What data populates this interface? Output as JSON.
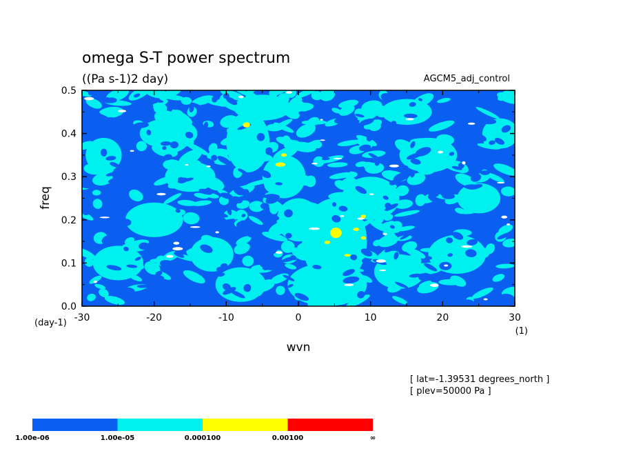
{
  "chart_data": {
    "type": "heatmap",
    "title": "omega S-T power spectrum",
    "subtitle": "((Pa s-1)2 day)",
    "dataset_label": "AGCM5_adj_control",
    "xlabel": "wvn",
    "ylabel": "freq",
    "x_unit": "(1)",
    "y_unit": "(day-1)",
    "xlim": [
      -30,
      30
    ],
    "ylim": [
      0,
      0.5
    ],
    "x_ticks": [
      "-30",
      "-20",
      "-10",
      "0",
      "10",
      "20",
      "30"
    ],
    "x_tick_values": [
      -30,
      -20,
      -10,
      0,
      10,
      20,
      30
    ],
    "y_ticks": [
      "0.0",
      "0.1",
      "0.2",
      "0.3",
      "0.4",
      "0.5"
    ],
    "y_tick_values": [
      0,
      0.1,
      0.2,
      0.3,
      0.4,
      0.5
    ],
    "info_lines": [
      "[ lat=-1.39531 degrees_north ]",
      "[ plev=50000 Pa ]"
    ],
    "levels": [
      {
        "label": "1.00e-06",
        "color": "#0a5ff0"
      },
      {
        "label": "1.00e-05",
        "color": "#00f0f0"
      },
      {
        "label": "0.000100",
        "color": "#ffff00"
      },
      {
        "label": "0.00100",
        "color": "#ff0000"
      }
    ],
    "colorbar_end_label": "∞",
    "background_level_color": "#0a5ff0",
    "cyan_regions": [
      {
        "x": 5,
        "y": 0.15,
        "rx": 4.5,
        "ry": 0.1
      },
      {
        "x": 4,
        "y": 0.05,
        "rx": 5.5,
        "ry": 0.05
      },
      {
        "x": -7,
        "y": 0.38,
        "rx": 3,
        "ry": 0.07
      },
      {
        "x": -2,
        "y": 0.3,
        "rx": 3,
        "ry": 0.05
      },
      {
        "x": 10,
        "y": 0.25,
        "rx": 4,
        "ry": 0.05
      },
      {
        "x": -20,
        "y": 0.2,
        "rx": 4,
        "ry": 0.04
      },
      {
        "x": -25,
        "y": 0.1,
        "rx": 3.5,
        "ry": 0.04
      },
      {
        "x": -18,
        "y": 0.4,
        "rx": 4,
        "ry": 0.035
      },
      {
        "x": -12,
        "y": 0.12,
        "rx": 3,
        "ry": 0.04
      },
      {
        "x": -15,
        "y": 0.3,
        "rx": 3.5,
        "ry": 0.035
      },
      {
        "x": 18,
        "y": 0.35,
        "rx": 4,
        "ry": 0.04
      },
      {
        "x": 22,
        "y": 0.12,
        "rx": 4,
        "ry": 0.045
      },
      {
        "x": 25,
        "y": 0.25,
        "rx": 3,
        "ry": 0.035
      },
      {
        "x": 15,
        "y": 0.45,
        "rx": 3.5,
        "ry": 0.03
      },
      {
        "x": -5,
        "y": 0.46,
        "rx": 4,
        "ry": 0.03
      },
      {
        "x": 0,
        "y": 0.2,
        "rx": 3,
        "ry": 0.05
      },
      {
        "x": 14,
        "y": 0.08,
        "rx": 3.5,
        "ry": 0.04
      },
      {
        "x": -8,
        "y": 0.05,
        "rx": 3.5,
        "ry": 0.04
      },
      {
        "x": 28,
        "y": 0.4,
        "rx": 2.5,
        "ry": 0.035
      },
      {
        "x": -27,
        "y": 0.35,
        "rx": 2.5,
        "ry": 0.04
      }
    ],
    "yellow_spots": [
      {
        "x": -7.2,
        "y": 0.42,
        "rx": 0.5,
        "ry": 0.006
      },
      {
        "x": -2.5,
        "y": 0.328,
        "rx": 0.7,
        "ry": 0.005
      },
      {
        "x": -2,
        "y": 0.35,
        "rx": 0.4,
        "ry": 0.004
      },
      {
        "x": 5.2,
        "y": 0.17,
        "rx": 0.8,
        "ry": 0.012
      },
      {
        "x": 4,
        "y": 0.148,
        "rx": 0.4,
        "ry": 0.004
      },
      {
        "x": 8,
        "y": 0.178,
        "rx": 0.4,
        "ry": 0.004
      },
      {
        "x": 9,
        "y": 0.208,
        "rx": 0.35,
        "ry": 0.004
      },
      {
        "x": 9,
        "y": 0.158,
        "rx": 0.35,
        "ry": 0.004
      },
      {
        "x": 6.8,
        "y": 0.118,
        "rx": 0.45,
        "ry": 0.003
      }
    ]
  }
}
